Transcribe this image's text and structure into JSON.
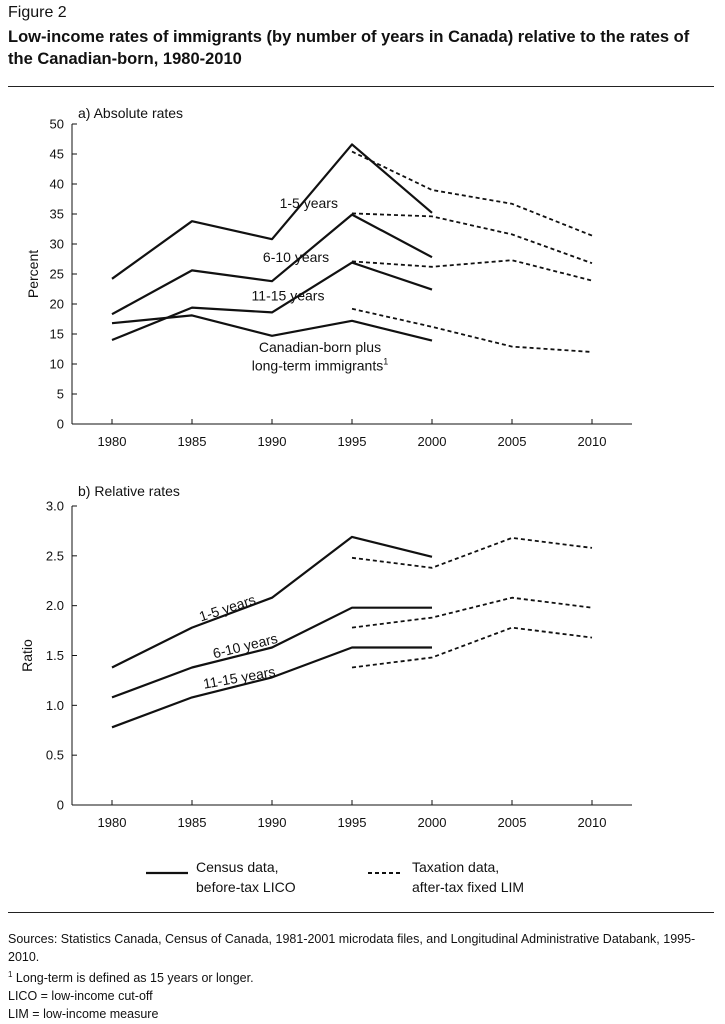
{
  "figure": {
    "label": "Figure 2",
    "title": "Low-income rates of immigrants (by number of years in Canada) relative to the rates of the Canadian-born, 1980-2010"
  },
  "legend": {
    "census_line1": "Census data,",
    "census_line2": "before-tax LICO",
    "tax_line1": "Taxation data,",
    "tax_line2": "after-tax fixed LIM"
  },
  "footer": {
    "sources": "Sources: Statistics Canada, Census of Canada, 1981-2001 microdata files, and Longitudinal Administrative Databank, 1995-2010.",
    "note_marker": "1",
    "note": " Long-term is defined as 15 years or longer.",
    "lico": "LICO = low-income cut-off",
    "lim": "LIM = low-income measure"
  },
  "chart_data": [
    {
      "type": "line",
      "title": "a) Absolute rates",
      "ylabel": "Percent",
      "xlabel": "",
      "ylim": [
        0,
        50
      ],
      "yticks": [
        "0",
        "5",
        "10",
        "15",
        "20",
        "25",
        "30",
        "35",
        "40",
        "45",
        "50"
      ],
      "x": [
        1980,
        1985,
        1990,
        1995,
        2000,
        2005,
        2010
      ],
      "xticks": [
        "1980",
        "1985",
        "1990",
        "1995",
        "2000",
        "2005",
        "2010"
      ],
      "series": [
        {
          "name": "1-5 years",
          "source": "census",
          "x": [
            1980,
            1985,
            1990,
            1995,
            2000
          ],
          "values": [
            24.2,
            33.8,
            30.8,
            46.6,
            35.2
          ]
        },
        {
          "name": "6-10 years",
          "source": "census",
          "x": [
            1980,
            1985,
            1990,
            1995,
            2000
          ],
          "values": [
            18.3,
            25.6,
            23.8,
            34.9,
            27.8
          ]
        },
        {
          "name": "11-15 years",
          "source": "census",
          "x": [
            1980,
            1985,
            1990,
            1995,
            2000
          ],
          "values": [
            14.0,
            19.4,
            18.6,
            26.9,
            22.4
          ]
        },
        {
          "name": "Canadian-born plus long-term immigrants",
          "name_sup": "1",
          "source": "census",
          "x": [
            1980,
            1985,
            1990,
            1995,
            2000
          ],
          "values": [
            16.8,
            18.1,
            14.7,
            17.2,
            13.9
          ]
        },
        {
          "name": "1-5 years",
          "source": "taxation",
          "x": [
            1995,
            2000,
            2005,
            2010
          ],
          "values": [
            45.4,
            39.0,
            36.7,
            31.4
          ]
        },
        {
          "name": "6-10 years",
          "source": "taxation",
          "x": [
            1995,
            2000,
            2005,
            2010
          ],
          "values": [
            35.1,
            34.6,
            31.6,
            26.8
          ]
        },
        {
          "name": "11-15 years",
          "source": "taxation",
          "x": [
            1995,
            2000,
            2005,
            2010
          ],
          "values": [
            27.1,
            26.2,
            27.3,
            23.9
          ]
        },
        {
          "name": "Canadian-born plus long-term immigrants",
          "source": "taxation",
          "x": [
            1995,
            2000,
            2005,
            2010
          ],
          "values": [
            19.2,
            16.2,
            12.9,
            12.0
          ]
        }
      ],
      "labels": [
        {
          "text": "1-5 years",
          "x": 1992.3,
          "y": 36.0
        },
        {
          "text": "6-10 years",
          "x": 1991.5,
          "y": 27.0
        },
        {
          "text": "11-15 years",
          "x": 1991.0,
          "y": 20.6
        },
        {
          "text": "Canadian-born plus",
          "x": 1993.0,
          "y": 12.0
        },
        {
          "text": "long-term immigrants",
          "x": 1993.0,
          "y": 8.9,
          "sup": "1"
        }
      ]
    },
    {
      "type": "line",
      "title": "b) Relative rates",
      "ylabel": "Ratio",
      "xlabel": "",
      "ylim": [
        0,
        3.0
      ],
      "yticks": [
        "0",
        "0.5",
        "1.0",
        "1.5",
        "2.0",
        "2.5",
        "3.0"
      ],
      "x": [
        1980,
        1985,
        1990,
        1995,
        2000,
        2005,
        2010
      ],
      "xticks": [
        "1980",
        "1985",
        "1990",
        "1995",
        "2000",
        "2005",
        "2010"
      ],
      "series": [
        {
          "name": "1-5 years",
          "source": "census",
          "x": [
            1980,
            1985,
            1990,
            1995,
            2000
          ],
          "values": [
            1.38,
            1.78,
            2.08,
            2.69,
            2.49
          ]
        },
        {
          "name": "6-10 years",
          "source": "census",
          "x": [
            1980,
            1985,
            1990,
            1995,
            2000
          ],
          "values": [
            1.08,
            1.38,
            1.58,
            1.98,
            1.98
          ]
        },
        {
          "name": "11-15 years",
          "source": "census",
          "x": [
            1980,
            1985,
            1990,
            1995,
            2000
          ],
          "values": [
            0.78,
            1.08,
            1.28,
            1.58,
            1.58
          ]
        },
        {
          "name": "1-5 years",
          "source": "taxation",
          "x": [
            1995,
            2000,
            2005,
            2010
          ],
          "values": [
            2.48,
            2.38,
            2.68,
            2.58
          ]
        },
        {
          "name": "6-10 years",
          "source": "taxation",
          "x": [
            1995,
            2000,
            2005,
            2010
          ],
          "values": [
            1.78,
            1.88,
            2.08,
            1.98
          ]
        },
        {
          "name": "11-15 years",
          "source": "taxation",
          "x": [
            1995,
            2000,
            2005,
            2010
          ],
          "values": [
            1.38,
            1.48,
            1.78,
            1.68
          ]
        }
      ],
      "labels": [
        {
          "text": "1-5 years",
          "x": 1987.3,
          "y": 1.93,
          "angle": -18
        },
        {
          "text": "6-10 years",
          "x": 1988.4,
          "y": 1.55,
          "angle": -14
        },
        {
          "text": "11-15 years",
          "x": 1988.0,
          "y": 1.23,
          "angle": -10
        }
      ]
    }
  ]
}
